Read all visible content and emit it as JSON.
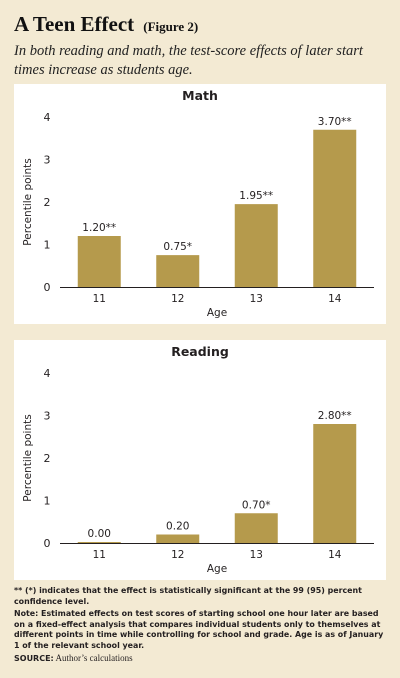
{
  "title": "A Teen Effect",
  "figure_label": "(Figure 2)",
  "subtitle": "In both reading and math, the test-score effects of later start times increase as students age.",
  "colors": {
    "bar": "#b59a4c",
    "background": "#f3ead3",
    "panel": "#ffffff"
  },
  "chart_data": [
    {
      "type": "bar",
      "title": "Math",
      "xlabel": "Age",
      "ylabel": "Percentile points",
      "categories": [
        "11",
        "12",
        "13",
        "14"
      ],
      "values": [
        1.2,
        0.75,
        1.95,
        3.7
      ],
      "data_labels": [
        "1.20**",
        "0.75*",
        "1.95**",
        "3.70**"
      ],
      "ylim": [
        0,
        4
      ],
      "yticks": [
        "0",
        "1",
        "2",
        "3",
        "4"
      ],
      "grid": false
    },
    {
      "type": "bar",
      "title": "Reading",
      "xlabel": "Age",
      "ylabel": "Percentile points",
      "categories": [
        "11",
        "12",
        "13",
        "14"
      ],
      "values": [
        0.0,
        0.2,
        0.7,
        2.8
      ],
      "data_labels": [
        "0.00",
        "0.20",
        "0.70*",
        "2.80**"
      ],
      "ylim": [
        0,
        4
      ],
      "yticks": [
        "0",
        "1",
        "2",
        "3",
        "4"
      ],
      "grid": false
    }
  ],
  "notes": {
    "significance": "** (*) indicates that the effect is statistically significant at the 99 (95) percent confidence level.",
    "note": "Note: Estimated effects on test scores of starting school one hour later are based on a fixed-effect analysis that compares individual students only to themselves at different points in time while controlling for school and grade. Age is as of January 1 of the relevant school year.",
    "source_label": "SOURCE:",
    "source_text": "Author’s calculations"
  }
}
